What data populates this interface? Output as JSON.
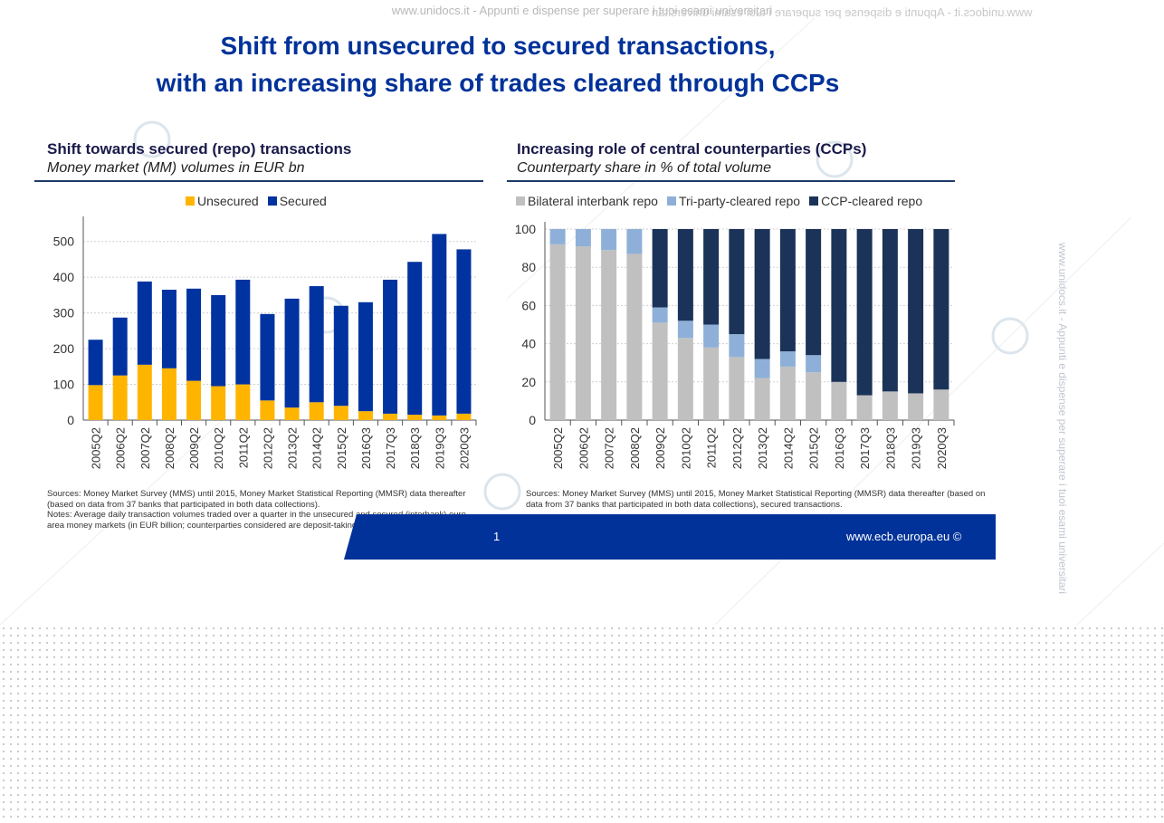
{
  "watermark": {
    "top_text": "www.unidocs.it - Appunti e dispense per superare i tuoi esami universitari",
    "side_text": "www.unidocs.it - Appunti e dispense per superare i tuoi esami universitari"
  },
  "slide": {
    "title_line1": "Shift from unsecured to secured transactions,",
    "title_line2": "with an increasing share of trades cleared through CCPs",
    "page_number": "1",
    "url": "www.ecb.europa.eu ©"
  },
  "colors": {
    "title_blue": "#003299",
    "unsecured": "#FFB400",
    "secured": "#0033A0",
    "bilateral": "#C0C0C0",
    "tri_party": "#8EB0D8",
    "ccp": "#1B3358"
  },
  "left_panel": {
    "title": "Shift towards secured (repo) transactions",
    "subtitle": "Money market (MM) volumes in EUR bn",
    "note": "Sources: Money Market Survey (MMS) until 2015, Money Market Statistical Reporting (MMSR) data thereafter (based on data from 37 banks that participated in both data collections).\nNotes: Average daily transaction volumes traded over a quarter in the unsecured and secured (interbank) euro area money markets (in EUR billion; counterparties considered are deposit-taking institutions and CCPs only)."
  },
  "right_panel": {
    "title": "Increasing role of central counterparties (CCPs)",
    "subtitle": "Counterparty share in % of total volume",
    "note": "Sources: Money Market Survey (MMS) until 2015, Money Market Statistical Reporting (MMSR) data thereafter (based on data from 37 banks that participated in both data collections), secured transactions."
  },
  "chart_data": [
    {
      "type": "bar",
      "stacked": true,
      "categories": [
        "2005Q2",
        "2006Q2",
        "2007Q2",
        "2008Q2",
        "2009Q2",
        "2010Q2",
        "2011Q2",
        "2012Q2",
        "2013Q2",
        "2014Q2",
        "2015Q2",
        "2016Q3",
        "2017Q3",
        "2018Q3",
        "2019Q3",
        "2020Q3"
      ],
      "series": [
        {
          "name": "Unsecured",
          "color": "#FFB400",
          "values": [
            98,
            125,
            155,
            145,
            110,
            95,
            100,
            55,
            35,
            50,
            40,
            25,
            18,
            15,
            13,
            18
          ]
        },
        {
          "name": "Secured",
          "color": "#0033A0",
          "values": [
            127,
            162,
            233,
            220,
            258,
            255,
            293,
            242,
            305,
            325,
            280,
            305,
            375,
            428,
            508,
            460
          ]
        }
      ],
      "ylim": [
        0,
        550
      ],
      "yticks": [
        0,
        100,
        200,
        300,
        400,
        500
      ],
      "grid": true,
      "legend": "top-center"
    },
    {
      "type": "bar",
      "stacked": true,
      "categories": [
        "2005Q2",
        "2006Q2",
        "2007Q2",
        "2008Q2",
        "2009Q2",
        "2010Q2",
        "2011Q2",
        "2012Q2",
        "2013Q2",
        "2014Q2",
        "2015Q2",
        "2016Q3",
        "2017Q3",
        "2018Q3",
        "2019Q3",
        "2020Q3"
      ],
      "series": [
        {
          "name": "Bilateral interbank repo",
          "color": "#C0C0C0",
          "values": [
            92,
            91,
            89,
            87,
            51,
            43,
            38,
            33,
            22,
            28,
            25,
            20,
            13,
            15,
            14,
            16
          ]
        },
        {
          "name": "Tri-party-cleared repo",
          "color": "#8EB0D8",
          "values": [
            8,
            9,
            11,
            13,
            8,
            9,
            12,
            12,
            10,
            8,
            9,
            0,
            0,
            0,
            0,
            0
          ]
        },
        {
          "name": "CCP-cleared repo",
          "color": "#1B3358",
          "values": [
            0,
            0,
            0,
            0,
            41,
            48,
            50,
            55,
            68,
            64,
            66,
            80,
            87,
            85,
            86,
            84
          ]
        }
      ],
      "ylim": [
        0,
        100
      ],
      "yticks": [
        0,
        20,
        40,
        60,
        80,
        100
      ],
      "grid": true,
      "legend": "top-center"
    }
  ]
}
